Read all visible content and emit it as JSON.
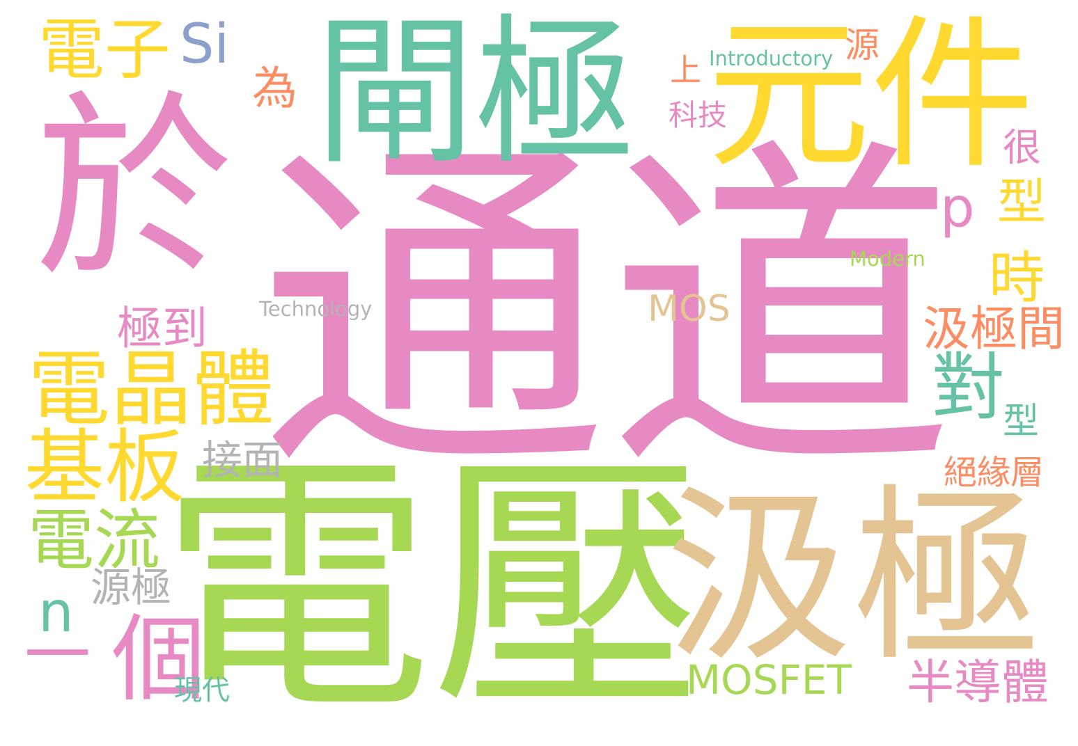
{
  "palette": {
    "pink": "#e78ac3",
    "green": "#a6d854",
    "teal": "#66c2a5",
    "yellow": "#ffd92f",
    "tan": "#e5c494",
    "orange": "#fc8d62",
    "blue": "#8da0cb",
    "gray": "#b3b3b3"
  },
  "words": [
    {
      "text": "通道",
      "color": "pink"
    },
    {
      "text": "電壓",
      "color": "green"
    },
    {
      "text": "於",
      "color": "pink"
    },
    {
      "text": "閘極",
      "color": "teal"
    },
    {
      "text": "元件",
      "color": "yellow"
    },
    {
      "text": "汲極",
      "color": "tan"
    },
    {
      "text": "電晶體",
      "color": "yellow"
    },
    {
      "text": "基板",
      "color": "yellow"
    },
    {
      "text": "電子",
      "color": "yellow"
    },
    {
      "text": "Si",
      "color": "blue"
    },
    {
      "text": "個",
      "color": "pink"
    },
    {
      "text": "電流",
      "color": "green"
    },
    {
      "text": "對",
      "color": "teal"
    },
    {
      "text": "MOSFET",
      "color": "green"
    },
    {
      "text": "極到",
      "color": "pink"
    },
    {
      "text": "汲極間",
      "color": "orange"
    },
    {
      "text": "時",
      "color": "yellow"
    },
    {
      "text": "型",
      "color": "yellow"
    },
    {
      "text": "p",
      "color": "pink"
    },
    {
      "text": "n",
      "color": "teal"
    },
    {
      "text": "半導體",
      "color": "pink"
    },
    {
      "text": "為",
      "color": "orange"
    },
    {
      "text": "MOS",
      "color": "tan"
    },
    {
      "text": "源極",
      "color": "gray"
    },
    {
      "text": "接面",
      "color": "gray"
    },
    {
      "text": "絕緣層",
      "color": "orange"
    },
    {
      "text": "很",
      "color": "pink"
    },
    {
      "text": "源",
      "color": "orange"
    },
    {
      "text": "科技",
      "color": "pink"
    },
    {
      "text": "型",
      "color": "teal"
    },
    {
      "text": "上",
      "color": "orange"
    },
    {
      "text": "現代",
      "color": "teal"
    },
    {
      "text": "Technology",
      "color": "gray"
    },
    {
      "text": "Introductory",
      "color": "teal"
    },
    {
      "text": "Modern",
      "color": "green"
    },
    {
      "text": "一",
      "color": "pink"
    }
  ]
}
